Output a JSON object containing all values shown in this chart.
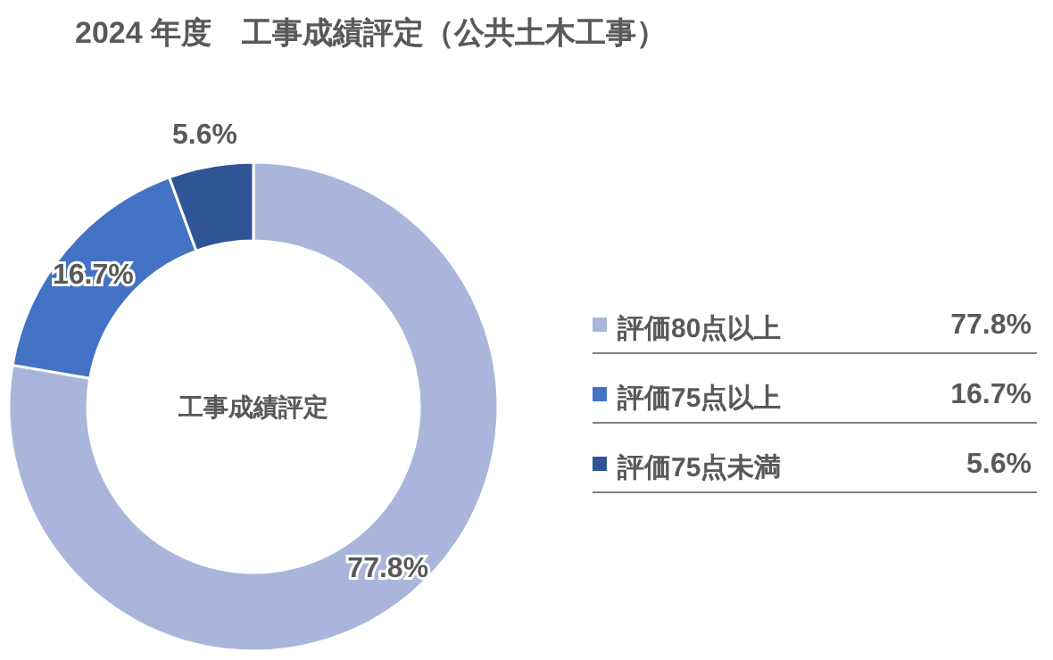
{
  "chart_data": {
    "type": "donut",
    "title": "2024 年度　工事成績評定（公共土木工事）",
    "categories": [
      "評価80点以上",
      "評価75点以上",
      "評価75点未満"
    ],
    "values": [
      77.8,
      16.7,
      5.6
    ],
    "colors": [
      "#a9b5db",
      "#4472c4",
      "#2f5597"
    ],
    "value_labels": [
      "77.8%",
      "16.7%",
      "5.6%"
    ],
    "legend": "right",
    "annotations": [
      "工事成績評定"
    ]
  }
}
